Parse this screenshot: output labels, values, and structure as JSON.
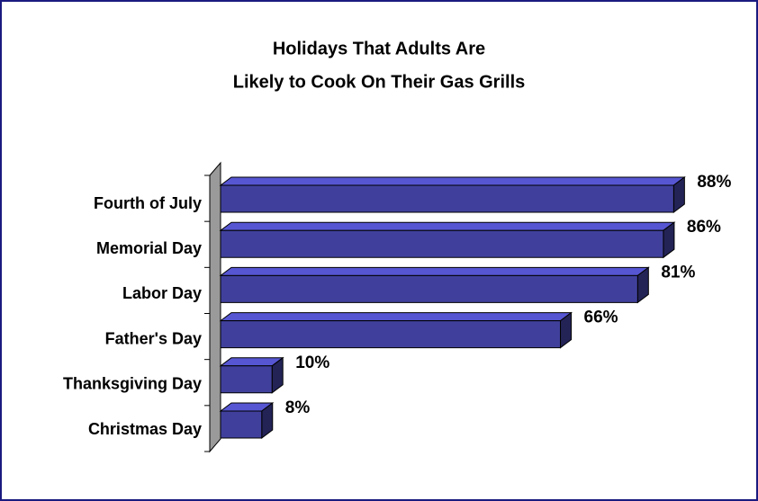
{
  "chart_data": {
    "type": "bar3d-horizontal",
    "title": [
      "Holidays That Adults Are",
      "Likely to Cook On Their Gas Grills"
    ],
    "categories": [
      "Fourth of July",
      "Memorial Day",
      "Labor Day",
      "Father's Day",
      "Thanksgiving Day",
      "Christmas Day"
    ],
    "values": [
      88,
      86,
      81,
      66,
      10,
      8
    ],
    "value_labels": [
      "88%",
      "86%",
      "81%",
      "66%",
      "10%",
      "8%"
    ],
    "color": "#40409c"
  }
}
